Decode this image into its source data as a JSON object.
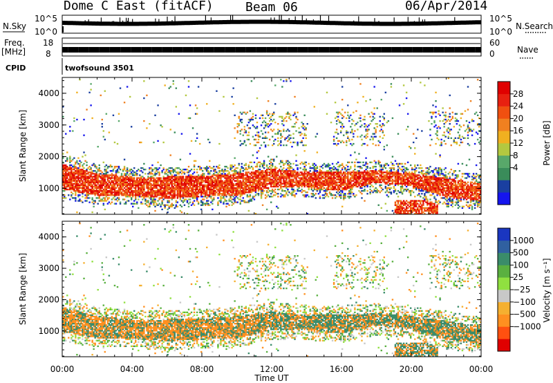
{
  "header": {
    "station": "Dome C East (fitACF)",
    "beam": "Beam 06",
    "date": "06/Apr/2014"
  },
  "top_panels": {
    "nsky_label": "N.Sky",
    "nsearch_label": "N.Search",
    "exp_high": "10^5",
    "exp_low": "10^0",
    "freq_label": "Freq.",
    "freq_unit": "[MHz]",
    "freq_ticks": [
      "18",
      "8"
    ],
    "nave_label": "Nave",
    "nave_ticks": [
      "60",
      "0"
    ],
    "cpid_label": "CPID",
    "cpid_value": "twofsound 3501"
  },
  "colors": {
    "power": [
      "#1515ee",
      "#1a3fa0",
      "#3a8c5a",
      "#58a86a",
      "#b3c840",
      "#f0b020",
      "#f08020",
      "#f05010",
      "#e82010",
      "#e00000"
    ],
    "velocity": [
      "#e00000",
      "#ff5010",
      "#ff9020",
      "#f5b030",
      "#c8c8c8",
      "#90e040",
      "#5ab040",
      "#3a8c6a",
      "#3060a0",
      "#1a36c0"
    ]
  },
  "chart_data": [
    {
      "type": "heatmap",
      "name": "Power",
      "ylabel": "Slant Range [km]",
      "xlabel": "Time UT",
      "x_range_hours": [
        0,
        24
      ],
      "ylim": [
        180,
        4500
      ],
      "x_ticks": [
        "00:00",
        "04:00",
        "08:00",
        "12:00",
        "16:00",
        "20:00",
        "00:00"
      ],
      "y_ticks": [
        "1000",
        "2000",
        "3000",
        "4000"
      ],
      "colorbar": {
        "label": "Power [dB]",
        "ticks": [
          "28",
          "24",
          "20",
          "16",
          "12",
          "8",
          "4"
        ],
        "range": [
          0,
          32
        ]
      },
      "main_echo_band": [
        {
          "x": 0,
          "y_center": 1350,
          "width": 800
        },
        {
          "x": 2,
          "y_center": 1100,
          "width": 700
        },
        {
          "x": 4,
          "y_center": 1050,
          "width": 600
        },
        {
          "x": 6,
          "y_center": 1000,
          "width": 700
        },
        {
          "x": 8,
          "y_center": 1050,
          "width": 650
        },
        {
          "x": 10,
          "y_center": 1100,
          "width": 700
        },
        {
          "x": 12,
          "y_center": 1300,
          "width": 600
        },
        {
          "x": 14,
          "y_center": 1250,
          "width": 500
        },
        {
          "x": 16,
          "y_center": 1200,
          "width": 600
        },
        {
          "x": 18,
          "y_center": 1350,
          "width": 400
        },
        {
          "x": 20,
          "y_center": 1250,
          "width": 400
        },
        {
          "x": 22,
          "y_center": 1000,
          "width": 600
        },
        {
          "x": 24,
          "y_center": 850,
          "width": 550
        }
      ]
    },
    {
      "type": "heatmap",
      "name": "Velocity",
      "ylabel": "Slant Range [km]",
      "xlabel": "Time UT",
      "x_range_hours": [
        0,
        24
      ],
      "ylim": [
        180,
        4500
      ],
      "x_ticks": [
        "00:00",
        "04:00",
        "08:00",
        "12:00",
        "16:00",
        "20:00",
        "00:00"
      ],
      "y_ticks": [
        "1000",
        "2000",
        "3000",
        "4000"
      ],
      "colorbar": {
        "label": "Velocity [m s⁻¹]",
        "ticks": [
          "1000",
          "500",
          "100",
          "25",
          "−25",
          "−100",
          "−500",
          "−1000"
        ],
        "range": [
          -1000,
          1000
        ]
      }
    }
  ]
}
